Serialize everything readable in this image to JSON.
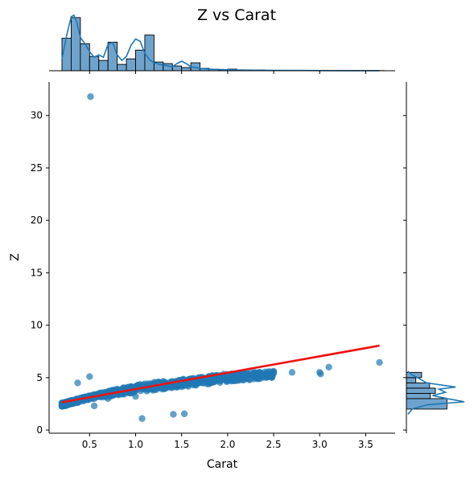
{
  "chart_data": {
    "type": "scatter",
    "title": "Z vs Carat",
    "xlabel": "Carat",
    "ylabel": "Z",
    "xlim": [
      0.06,
      3.82
    ],
    "ylim": [
      -0.3,
      33.2
    ],
    "xticks": [
      0.5,
      1.0,
      1.5,
      2.0,
      2.5,
      3.0,
      3.5
    ],
    "xtick_labels": [
      "0.5",
      "1.0",
      "1.5",
      "2.0",
      "2.5",
      "3.0",
      "3.5"
    ],
    "yticks": [
      0,
      5,
      10,
      15,
      20,
      25,
      30
    ],
    "ytick_labels": [
      "0",
      "5",
      "10",
      "15",
      "20",
      "25",
      "30"
    ],
    "grid": false,
    "colors": {
      "points": "#1f77b4",
      "regression": "#ee1111",
      "hist_fill": "#6fa3cc",
      "kde": "#1f77b4"
    },
    "scatter_points": {
      "name": "",
      "x": [
        0.23,
        0.25,
        0.26,
        0.28,
        0.3,
        0.31,
        0.32,
        0.33,
        0.35,
        0.36,
        0.38,
        0.4,
        0.41,
        0.42,
        0.45,
        0.5,
        0.51,
        0.52,
        0.54,
        0.57,
        0.6,
        0.62,
        0.7,
        0.71,
        0.72,
        0.73,
        0.75,
        0.8,
        0.9,
        0.91,
        0.95,
        1.0,
        1.01,
        1.02,
        1.03,
        1.05,
        1.1,
        1.2,
        1.21,
        1.25,
        1.3,
        1.5,
        1.51,
        1.52,
        1.6,
        1.7,
        1.8,
        2.0,
        2.01,
        2.1,
        2.2,
        2.3,
        2.5,
        2.7,
        3.0,
        3.01,
        3.1,
        3.65,
        0.51,
        0.5,
        0.37,
        0.55,
        1.07,
        1.41,
        1.53,
        1.0,
        0.7,
        2.5,
        2.3
      ],
      "y": [
        2.35,
        2.45,
        2.5,
        2.55,
        2.6,
        2.7,
        2.75,
        2.8,
        2.9,
        2.85,
        2.95,
        3.0,
        3.05,
        3.1,
        3.15,
        3.2,
        3.25,
        3.3,
        3.35,
        3.4,
        3.5,
        3.55,
        3.65,
        3.7,
        3.72,
        3.75,
        3.8,
        3.9,
        4.0,
        4.05,
        4.1,
        4.15,
        4.2,
        4.25,
        4.3,
        4.35,
        4.4,
        4.5,
        4.55,
        4.6,
        4.65,
        4.75,
        4.8,
        4.85,
        4.9,
        5.0,
        5.1,
        5.15,
        5.2,
        5.25,
        5.3,
        5.35,
        5.4,
        5.5,
        5.5,
        5.35,
        6.0,
        6.45,
        31.8,
        5.1,
        4.5,
        2.3,
        1.1,
        1.5,
        1.55,
        3.2,
        3.0,
        5.55,
        5.0
      ],
      "bulk_band": {
        "x": [
          0.2,
          0.5,
          1.0,
          1.5,
          2.0,
          2.5
        ],
        "y_low": [
          2.25,
          2.9,
          3.6,
          4.1,
          4.6,
          5.0
        ],
        "y_high": [
          2.6,
          3.3,
          4.3,
          4.8,
          5.4,
          5.6
        ]
      }
    },
    "regression_line": {
      "name": "",
      "x": [
        0.2,
        3.65
      ],
      "y": [
        2.65,
        8.05
      ]
    },
    "marginal_x_histogram": {
      "bin_edges": [
        0.2,
        0.3,
        0.4,
        0.5,
        0.6,
        0.7,
        0.8,
        0.9,
        1.0,
        1.1,
        1.2,
        1.3,
        1.4,
        1.5,
        1.6,
        1.7,
        1.8,
        1.9,
        2.0,
        2.1,
        2.2,
        2.3,
        2.4,
        2.5,
        2.6,
        2.7,
        2.8,
        2.9,
        3.0,
        3.1,
        3.2,
        3.3,
        3.4,
        3.5,
        3.6,
        3.7
      ],
      "counts": [
        41,
        67,
        34,
        18,
        13,
        36,
        8,
        15,
        26,
        45,
        11,
        9,
        6,
        4,
        10,
        3,
        2,
        1,
        2,
        1,
        1,
        1,
        0.5,
        0.5,
        0.5,
        0.3,
        0.3,
        0.3,
        0.3,
        0.2,
        0.2,
        0.2,
        0.2,
        0.2,
        0.2
      ],
      "kde_x": [
        0.2,
        0.25,
        0.3,
        0.33,
        0.36,
        0.4,
        0.45,
        0.5,
        0.55,
        0.6,
        0.65,
        0.7,
        0.75,
        0.8,
        0.85,
        0.9,
        0.95,
        1.0,
        1.05,
        1.1,
        1.15,
        1.2,
        1.3,
        1.4,
        1.45,
        1.5,
        1.55,
        1.6,
        1.7,
        1.8,
        2.0,
        2.2,
        2.5,
        2.8,
        3.0,
        3.3,
        3.65
      ],
      "kde_y": [
        15,
        44,
        68,
        70,
        62,
        42,
        34,
        24,
        17,
        20,
        17,
        33,
        36,
        20,
        13,
        18,
        32,
        40,
        37,
        22,
        14,
        10,
        7,
        5,
        9,
        12,
        9,
        5,
        3,
        2,
        1.2,
        0.8,
        0.5,
        0.3,
        0.2,
        0.1,
        0.05
      ]
    },
    "marginal_y_histogram": {
      "bin_edges": [
        2.0,
        3.0,
        3.5,
        4.0,
        4.5,
        5.0,
        5.5
      ],
      "counts": [
        56,
        33,
        40,
        32,
        13,
        21
      ],
      "kde_y": [
        1.5,
        2.0,
        2.4,
        2.7,
        3.0,
        3.3,
        3.6,
        3.9,
        4.1,
        4.5,
        4.9,
        5.3,
        5.6
      ],
      "kde_x": [
        2,
        8,
        28,
        80,
        56,
        36,
        54,
        45,
        68,
        28,
        18,
        7,
        2
      ]
    }
  }
}
